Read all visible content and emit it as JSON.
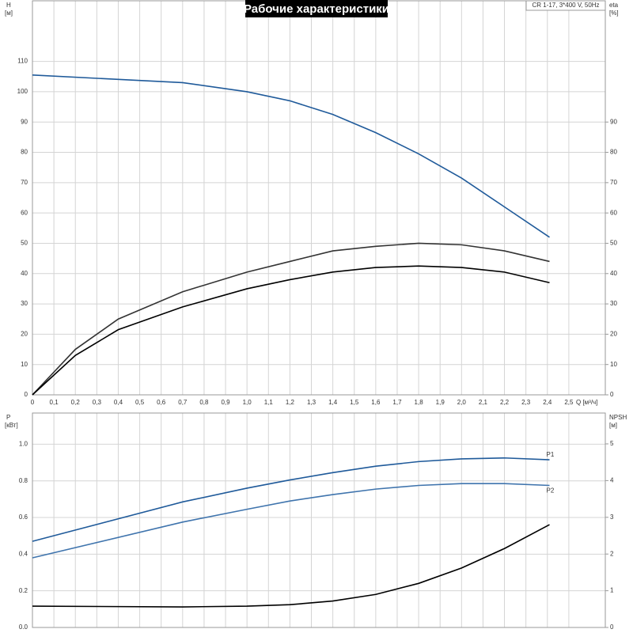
{
  "chart_data": [
    {
      "type": "line",
      "title": "Рабочие характеристики",
      "annotation": "CR 1-17, 3*400 V, 50Hz",
      "xlabel": "Q [м³/ч]",
      "ylabel": "H",
      "yunit": "[м]",
      "y2label": "eta",
      "y2unit": "[%]",
      "xlim": [
        0,
        2.67
      ],
      "ylim": [
        0,
        130
      ],
      "y2lim": [
        0,
        130
      ],
      "xticks": [
        0,
        {
          "value": 0.1,
          "label": "0,1"
        },
        {
          "value": 0.2,
          "label": "0,2"
        },
        {
          "value": 0.3,
          "label": "0,3"
        },
        {
          "value": 0.4,
          "label": "0,4"
        },
        {
          "value": 0.5,
          "label": "0,5"
        },
        {
          "value": 0.6,
          "label": "0,6"
        },
        {
          "value": 0.7,
          "label": "0,7"
        },
        {
          "value": 0.8,
          "label": "0,8"
        },
        {
          "value": 0.9,
          "label": "0,9"
        },
        {
          "value": 1.0,
          "label": "1,0"
        },
        {
          "value": 1.1,
          "label": "1,1"
        },
        {
          "value": 1.2,
          "label": "1,2"
        },
        {
          "value": 1.3,
          "label": "1,3"
        },
        {
          "value": 1.4,
          "label": "1,4"
        },
        {
          "value": 1.5,
          "label": "1,5"
        },
        {
          "value": 1.6,
          "label": "1,6"
        },
        {
          "value": 1.7,
          "label": "1,7"
        },
        {
          "value": 1.8,
          "label": "1,8"
        },
        {
          "value": 1.9,
          "label": "1,9"
        },
        {
          "value": 2.0,
          "label": "2,0"
        },
        {
          "value": 2.1,
          "label": "2,1"
        },
        {
          "value": 2.2,
          "label": "2,2"
        },
        {
          "value": 2.3,
          "label": "2,3"
        },
        {
          "value": 2.4,
          "label": "2,4"
        },
        {
          "value": 2.5,
          "label": "2,5"
        }
      ],
      "yticks": [
        0,
        10,
        20,
        30,
        40,
        50,
        60,
        70,
        80,
        90,
        100,
        110
      ],
      "y2ticks": [
        0,
        10,
        20,
        30,
        40,
        50,
        60,
        70,
        80,
        90
      ],
      "series": [
        {
          "color": "#1f5a9a",
          "x": [
            0,
            0.7,
            1.0,
            1.2,
            1.4,
            1.6,
            1.8,
            2.0,
            2.2,
            2.41
          ],
          "values": [
            105.5,
            103,
            100,
            97,
            92.5,
            86.5,
            79.5,
            71.5,
            62,
            52
          ]
        },
        {
          "color": "#333333",
          "axis": "y2",
          "x": [
            0,
            0.2,
            0.4,
            0.7,
            1.0,
            1.2,
            1.4,
            1.6,
            1.8,
            2.0,
            2.2,
            2.41
          ],
          "values": [
            0,
            15,
            25,
            34,
            40.5,
            44,
            47.5,
            49,
            50,
            49.5,
            47.5,
            44
          ]
        },
        {
          "color": "#000000",
          "axis": "y2",
          "x": [
            0,
            0.2,
            0.4,
            0.7,
            1.0,
            1.2,
            1.4,
            1.6,
            1.8,
            2.0,
            2.2,
            2.41
          ],
          "values": [
            0,
            13,
            21.5,
            29,
            35,
            38,
            40.5,
            42,
            42.5,
            42,
            40.5,
            37
          ]
        }
      ]
    },
    {
      "type": "line",
      "ylabel": "P",
      "yunit": "[кВт]",
      "y2label": "NPSH",
      "y2unit": "[м]",
      "xlim": [
        0,
        2.67
      ],
      "ylim": [
        0,
        1.17
      ],
      "y2lim": [
        0,
        5.84
      ],
      "xticks": [
        0,
        0.1,
        0.2,
        0.3,
        0.4,
        0.5,
        0.6,
        0.7,
        0.8,
        0.9,
        1.0,
        1.1,
        1.2,
        1.3,
        1.4,
        1.5,
        1.6,
        1.7,
        1.8,
        1.9,
        2.0,
        2.1,
        2.2,
        2.3,
        2.4,
        2.5
      ],
      "yticks": [
        {
          "value": 0,
          "label": "0.0"
        },
        0.2,
        0.4,
        0.6,
        0.8,
        {
          "value": 1,
          "label": "1.0"
        }
      ],
      "y2ticks": [
        0,
        1,
        2,
        3,
        4,
        5
      ],
      "series": [
        {
          "name": "P1",
          "color": "#1f5a9a",
          "x": [
            0,
            0.7,
            1.0,
            1.2,
            1.4,
            1.6,
            1.8,
            2.0,
            2.2,
            2.41
          ],
          "values": [
            0.47,
            0.685,
            0.76,
            0.805,
            0.845,
            0.88,
            0.905,
            0.92,
            0.925,
            0.915
          ]
        },
        {
          "name": "P2",
          "color": "#3f74ad",
          "x": [
            0,
            0.7,
            1.0,
            1.2,
            1.4,
            1.6,
            1.8,
            2.0,
            2.2,
            2.41
          ],
          "values": [
            0.38,
            0.575,
            0.645,
            0.69,
            0.725,
            0.755,
            0.775,
            0.785,
            0.785,
            0.775
          ]
        },
        {
          "color": "#000000",
          "axis": "y2",
          "x": [
            0,
            0.7,
            1.0,
            1.2,
            1.4,
            1.6,
            1.8,
            2.0,
            2.2,
            2.41
          ],
          "values": [
            0.58,
            0.56,
            0.58,
            0.62,
            0.72,
            0.9,
            1.2,
            1.62,
            2.15,
            2.8
          ]
        }
      ]
    }
  ]
}
